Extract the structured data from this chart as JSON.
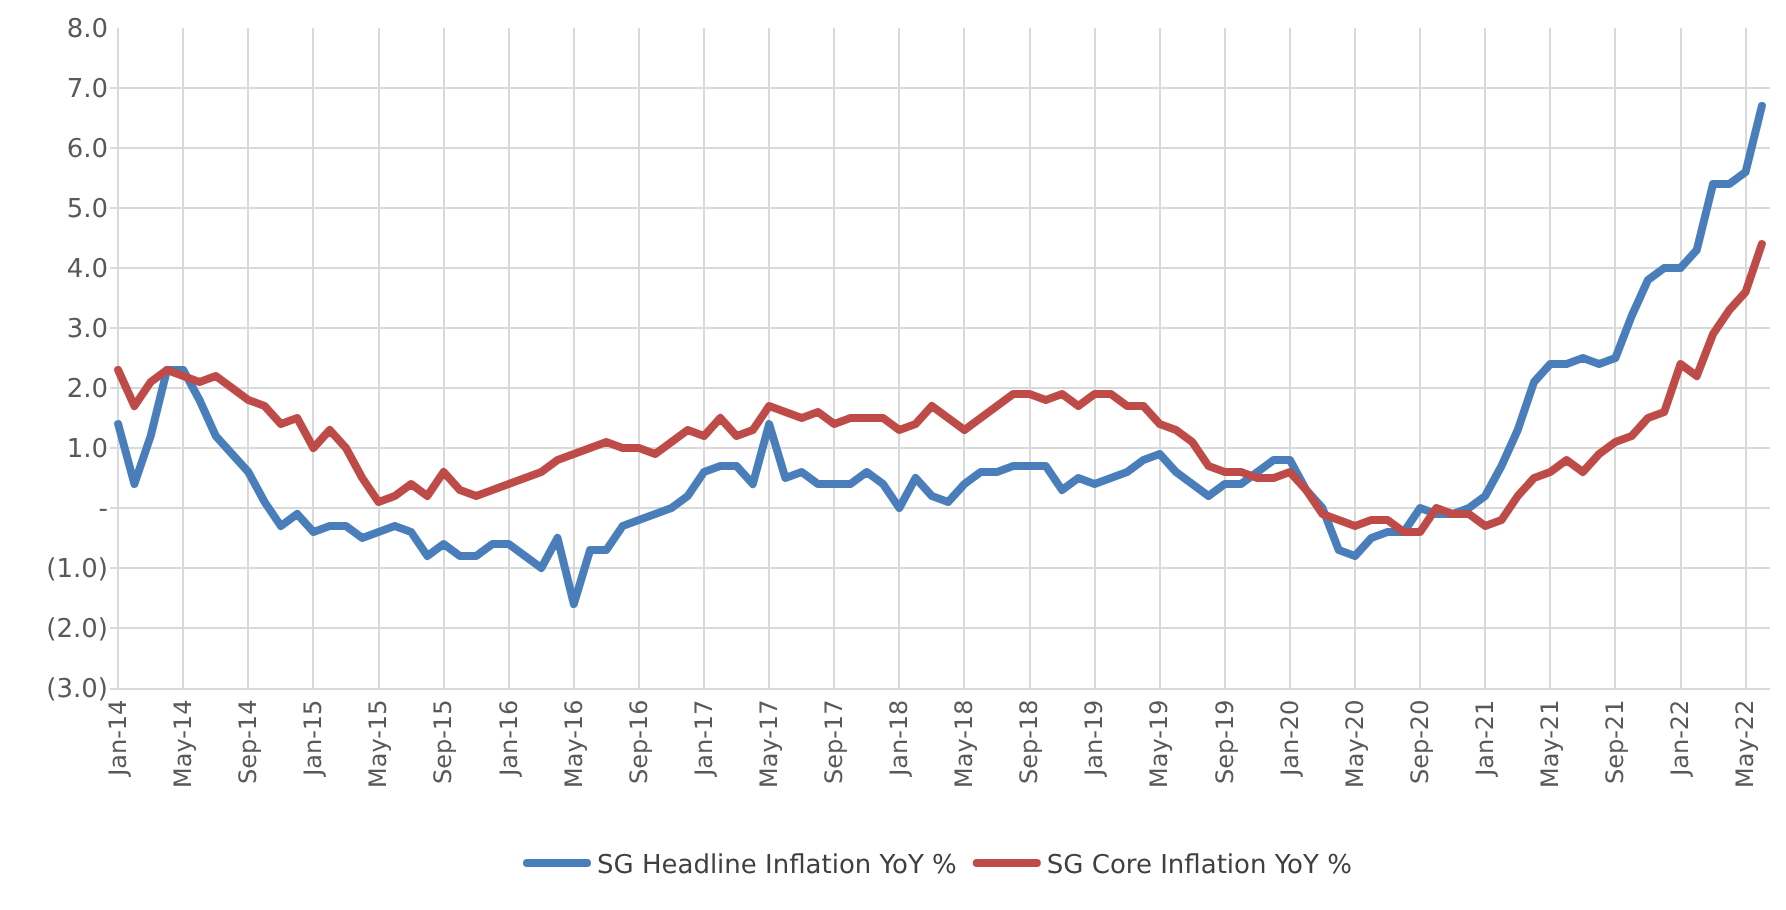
{
  "chart_data": {
    "type": "line",
    "categories": [
      "Jan-14",
      null,
      null,
      null,
      "May-14",
      null,
      null,
      null,
      "Sep-14",
      null,
      null,
      null,
      "Jan-15",
      null,
      null,
      null,
      "May-15",
      null,
      null,
      null,
      "Sep-15",
      null,
      null,
      null,
      "Jan-16",
      null,
      null,
      null,
      "May-16",
      null,
      null,
      null,
      "Sep-16",
      null,
      null,
      null,
      "Jan-17",
      null,
      null,
      null,
      "May-17",
      null,
      null,
      null,
      "Sep-17",
      null,
      null,
      null,
      "Jan-18",
      null,
      null,
      null,
      "May-18",
      null,
      null,
      null,
      "Sep-18",
      null,
      null,
      null,
      "Jan-19",
      null,
      null,
      null,
      "May-19",
      null,
      null,
      null,
      "Sep-19",
      null,
      null,
      null,
      "Jan-20",
      null,
      null,
      null,
      "May-20",
      null,
      null,
      null,
      "Sep-20",
      null,
      null,
      null,
      "Jan-21",
      null,
      null,
      null,
      "May-21",
      null,
      null,
      null,
      "Sep-21",
      null,
      null,
      null,
      "Jan-22",
      null,
      null,
      null,
      "May-22",
      null
    ],
    "series": [
      {
        "name": "SG Headline Inflation YoY %",
        "color": "#4a7ebb",
        "values": [
          1.4,
          0.4,
          1.2,
          2.3,
          2.3,
          1.8,
          1.2,
          0.9,
          0.6,
          0.1,
          -0.3,
          -0.1,
          -0.4,
          -0.3,
          -0.3,
          -0.5,
          -0.4,
          -0.3,
          -0.4,
          -0.8,
          -0.6,
          -0.8,
          -0.8,
          -0.6,
          -0.6,
          -0.8,
          -1.0,
          -0.5,
          -1.6,
          -0.7,
          -0.7,
          -0.3,
          -0.2,
          -0.1,
          0.0,
          0.2,
          0.6,
          0.7,
          0.7,
          0.4,
          1.4,
          0.5,
          0.6,
          0.4,
          0.4,
          0.4,
          0.6,
          0.4,
          0.0,
          0.5,
          0.2,
          0.1,
          0.4,
          0.6,
          0.6,
          0.7,
          0.7,
          0.7,
          0.3,
          0.5,
          0.4,
          0.5,
          0.6,
          0.8,
          0.9,
          0.6,
          0.4,
          0.2,
          0.4,
          0.4,
          0.6,
          0.8,
          0.8,
          0.3,
          0.0,
          -0.7,
          -0.8,
          -0.5,
          -0.4,
          -0.4,
          0.0,
          -0.1,
          -0.1,
          0.0,
          0.2,
          0.7,
          1.3,
          2.1,
          2.4,
          2.4,
          2.5,
          2.4,
          2.5,
          3.2,
          3.8,
          4.0,
          4.0,
          4.3,
          5.4,
          5.4,
          5.6,
          6.7
        ]
      },
      {
        "name": "SG Core Inflation YoY %",
        "color": "#be4b48",
        "values": [
          2.3,
          1.7,
          2.1,
          2.3,
          2.2,
          2.1,
          2.2,
          2.0,
          1.8,
          1.7,
          1.4,
          1.5,
          1.0,
          1.3,
          1.0,
          0.5,
          0.1,
          0.2,
          0.4,
          0.2,
          0.6,
          0.3,
          0.2,
          0.3,
          0.4,
          0.5,
          0.6,
          0.8,
          0.9,
          1.0,
          1.1,
          1.0,
          1.0,
          0.9,
          1.1,
          1.3,
          1.2,
          1.5,
          1.2,
          1.3,
          1.7,
          1.6,
          1.5,
          1.6,
          1.4,
          1.5,
          1.5,
          1.5,
          1.3,
          1.4,
          1.7,
          1.5,
          1.3,
          1.5,
          1.7,
          1.9,
          1.9,
          1.8,
          1.9,
          1.7,
          1.9,
          1.9,
          1.7,
          1.7,
          1.4,
          1.3,
          1.1,
          0.7,
          0.6,
          0.6,
          0.5,
          0.5,
          0.6,
          0.3,
          -0.1,
          -0.2,
          -0.3,
          -0.2,
          -0.2,
          -0.4,
          -0.4,
          0.0,
          -0.1,
          -0.1,
          -0.3,
          -0.2,
          0.2,
          0.5,
          0.6,
          0.8,
          0.6,
          0.9,
          1.1,
          1.2,
          1.5,
          1.6,
          2.4,
          2.2,
          2.9,
          3.3,
          3.6,
          4.4
        ]
      }
    ],
    "ylim": [
      -3.0,
      8.0
    ],
    "yticks": [
      {
        "value": 8,
        "label": "8.0"
      },
      {
        "value": 7,
        "label": "7.0"
      },
      {
        "value": 6,
        "label": "6.0"
      },
      {
        "value": 5,
        "label": "5.0"
      },
      {
        "value": 4,
        "label": "4.0"
      },
      {
        "value": 3,
        "label": "3.0"
      },
      {
        "value": 2,
        "label": "2.0"
      },
      {
        "value": 1,
        "label": "1.0"
      },
      {
        "value": 0,
        "label": "-"
      },
      {
        "value": -1,
        "label": "(1.0)"
      },
      {
        "value": -2,
        "label": "(2.0)"
      },
      {
        "value": -3,
        "label": "(3.0)"
      }
    ],
    "grid": true,
    "legend": "bottom",
    "marker": "none",
    "line_style": "solid"
  }
}
